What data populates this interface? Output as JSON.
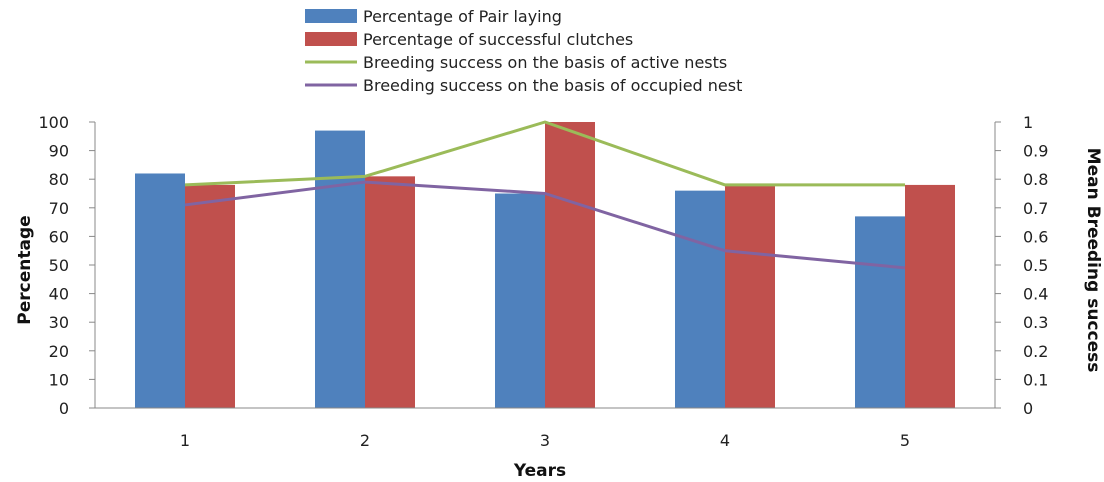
{
  "chart_data": {
    "type": "bar",
    "categories": [
      "1",
      "2",
      "3",
      "4",
      "5"
    ],
    "series": [
      {
        "name": "Percentage of Pair laying",
        "kind": "bar",
        "axis": "left",
        "color": "#4F81BD",
        "values": [
          82,
          97,
          75,
          76,
          67
        ]
      },
      {
        "name": "Percentage of successful clutches",
        "kind": "bar",
        "axis": "left",
        "color": "#C0504D",
        "values": [
          78,
          81,
          100,
          78,
          78
        ]
      },
      {
        "name": "Breeding success on the basis of active nests",
        "kind": "line",
        "axis": "right",
        "color": "#9BBB59",
        "values": [
          0.78,
          0.81,
          1.0,
          0.78,
          0.78
        ]
      },
      {
        "name": "Breeding success on the basis of occupied nest",
        "kind": "line",
        "axis": "right",
        "color": "#8064A2",
        "values": [
          0.71,
          0.79,
          0.75,
          0.55,
          0.49
        ]
      }
    ],
    "xlabel": "Years",
    "ylabel": "Percentage",
    "y2label": "Mean Breeding success",
    "ylim": [
      0,
      100
    ],
    "y2lim": [
      0,
      1
    ],
    "yticks": [
      "0",
      "10",
      "20",
      "30",
      "40",
      "50",
      "60",
      "70",
      "80",
      "90",
      "100"
    ],
    "y2ticks": [
      "0",
      "0.1",
      "0.2",
      "0.3",
      "0.4",
      "0.5",
      "0.6",
      "0.7",
      "0.8",
      "0.9",
      "1"
    ],
    "legend_position": "top",
    "grid": false
  }
}
